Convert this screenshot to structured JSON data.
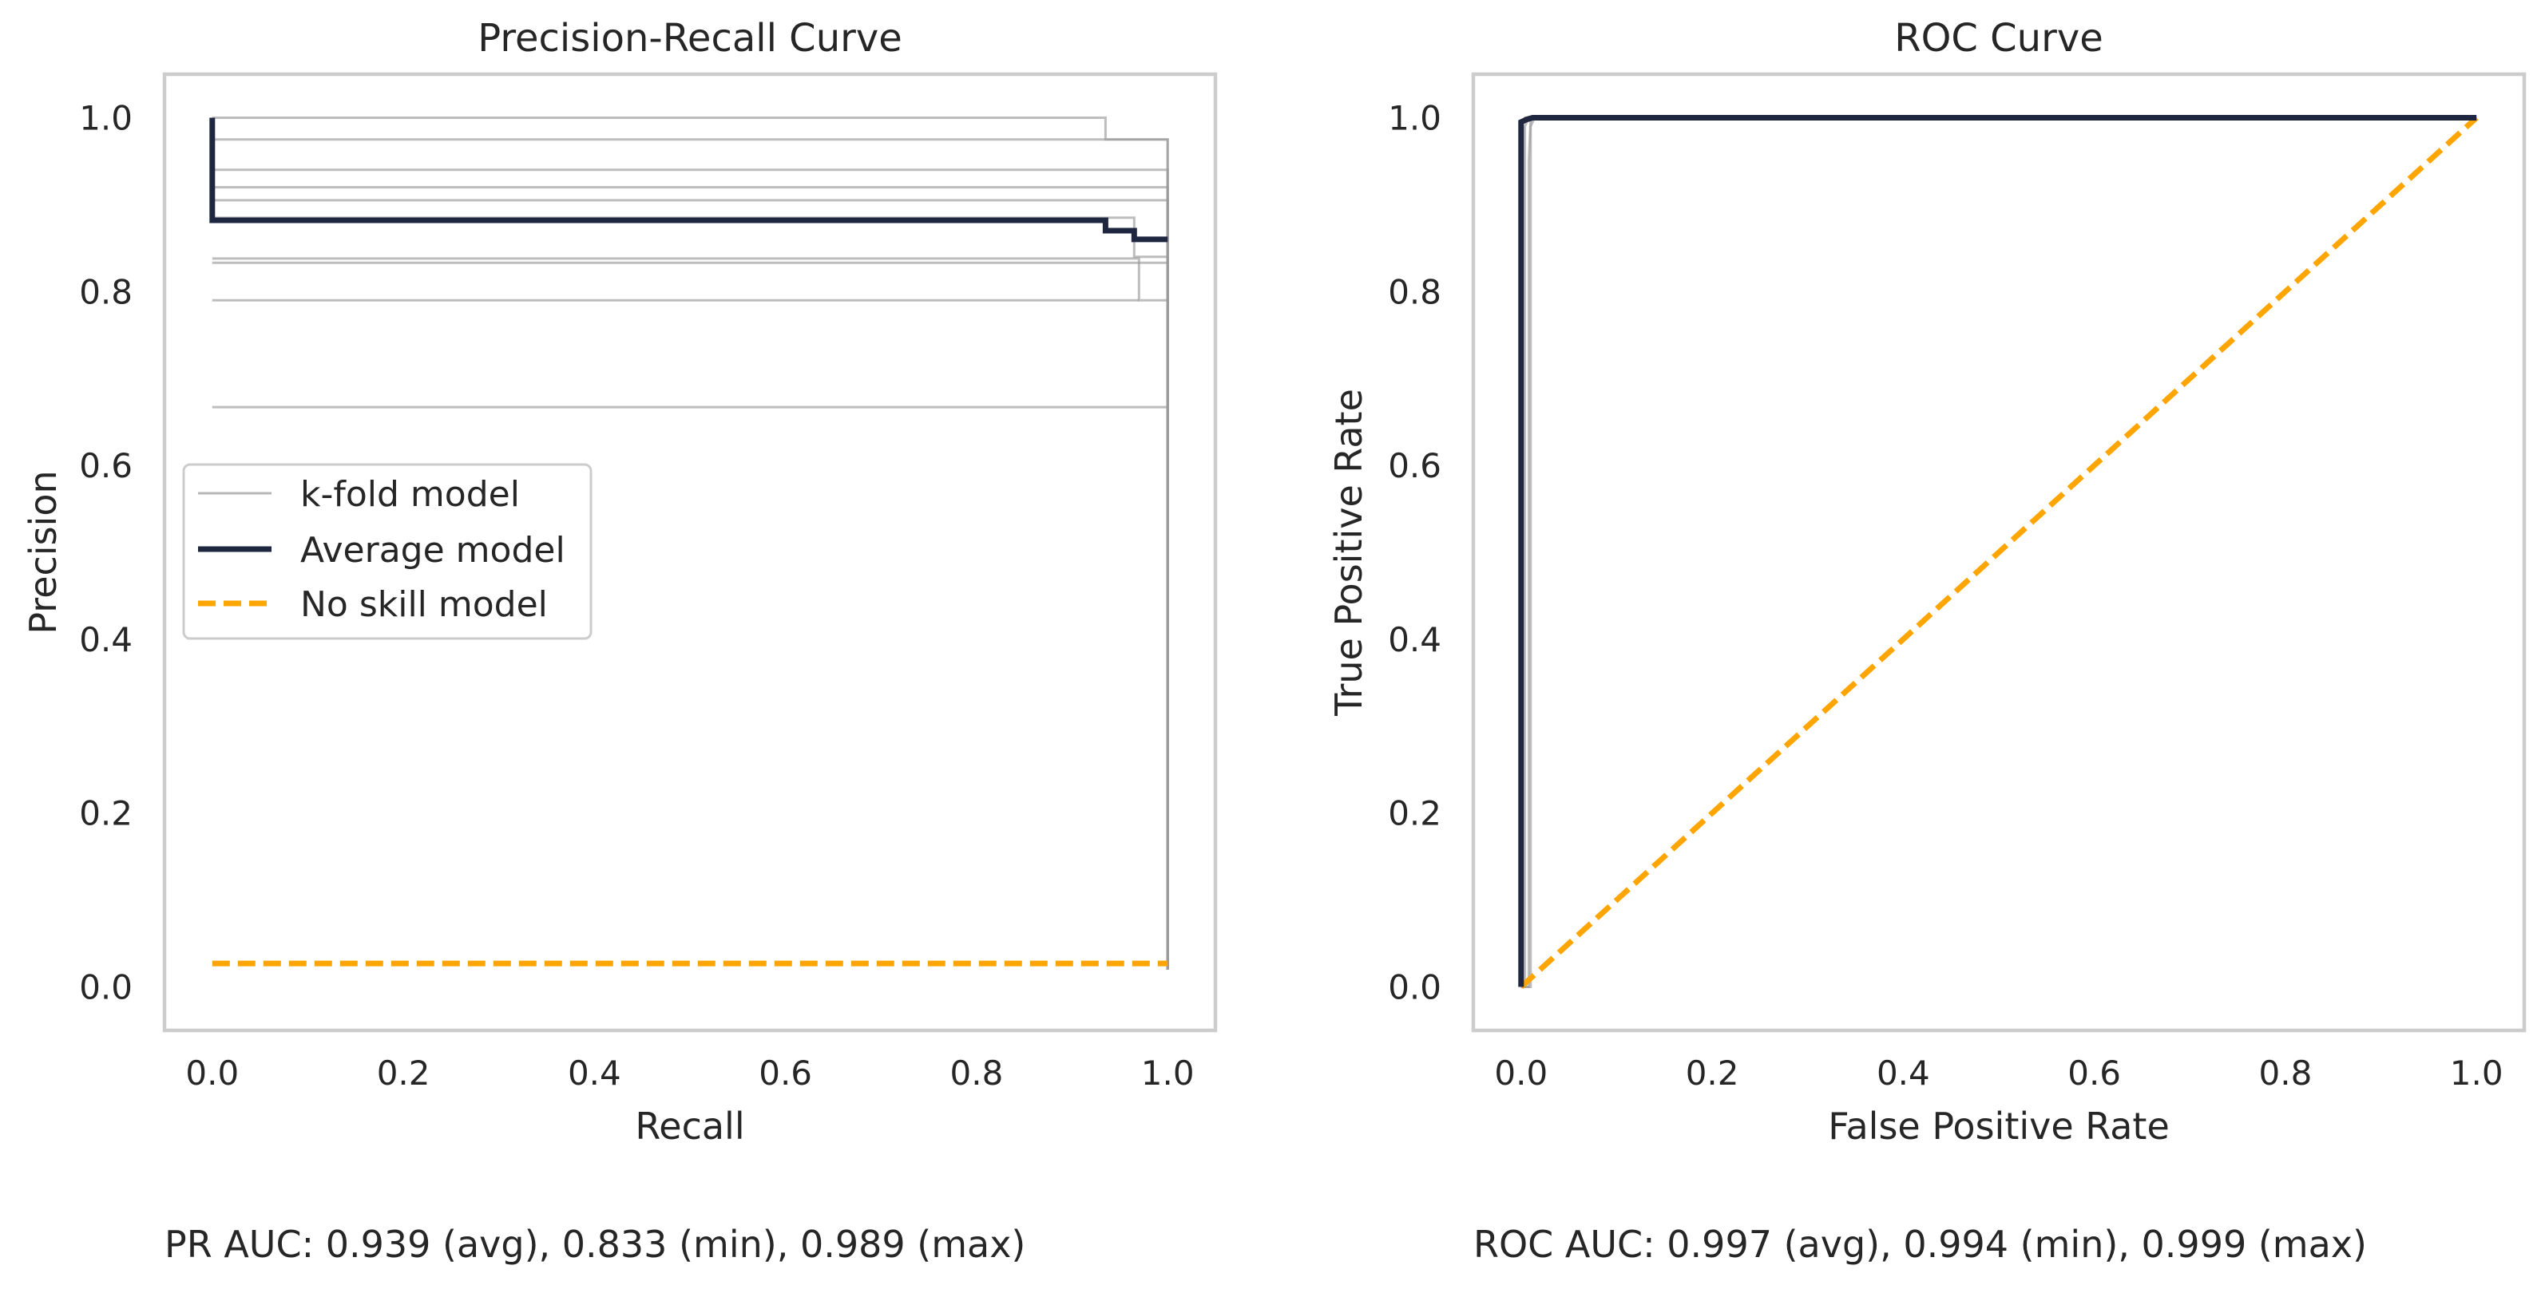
{
  "chart_data": [
    {
      "type": "line",
      "title": "Precision-Recall Curve",
      "xlabel": "Recall",
      "ylabel": "Precision",
      "xlim": [
        -0.05,
        1.05
      ],
      "ylim": [
        -0.05,
        1.05
      ],
      "xticks": [
        "0.0",
        "0.2",
        "0.4",
        "0.6",
        "0.8",
        "1.0"
      ],
      "yticks": [
        "0.0",
        "0.2",
        "0.4",
        "0.6",
        "0.8",
        "1.0"
      ],
      "grid": false,
      "legend": {
        "placement": "center-left",
        "entries": [
          "k-fold model",
          "Average model",
          "No skill model"
        ]
      },
      "colors": {
        "kfold": "#999999",
        "average": "#1f2640",
        "noskill": "#ffa500"
      },
      "series": [
        {
          "name": "k-fold model",
          "points": [
            [
              0,
              1.0
            ],
            [
              0.935,
              1.0
            ],
            [
              0.935,
              0.975
            ],
            [
              1.0,
              0.975
            ],
            [
              1.0,
              0.02
            ]
          ]
        },
        {
          "name": "k-fold model",
          "points": [
            [
              0,
              0.975
            ],
            [
              1.0,
              0.975
            ],
            [
              1.0,
              0.02
            ]
          ]
        },
        {
          "name": "k-fold model",
          "points": [
            [
              0,
              0.94
            ],
            [
              1.0,
              0.94
            ],
            [
              1.0,
              0.02
            ]
          ]
        },
        {
          "name": "k-fold model",
          "points": [
            [
              0,
              0.92
            ],
            [
              1.0,
              0.92
            ],
            [
              1.0,
              0.02
            ]
          ]
        },
        {
          "name": "k-fold model",
          "points": [
            [
              0,
              0.905
            ],
            [
              1.0,
              0.905
            ],
            [
              1.0,
              0.02
            ]
          ]
        },
        {
          "name": "k-fold model",
          "points": [
            [
              0,
              0.885
            ],
            [
              0.965,
              0.885
            ],
            [
              0.965,
              0.84
            ],
            [
              1.0,
              0.84
            ],
            [
              1.0,
              0.02
            ]
          ]
        },
        {
          "name": "k-fold model",
          "points": [
            [
              0,
              0.838
            ],
            [
              0.97,
              0.838
            ],
            [
              0.97,
              0.79
            ],
            [
              1.0,
              0.79
            ],
            [
              1.0,
              0.02
            ]
          ]
        },
        {
          "name": "k-fold model",
          "points": [
            [
              0,
              0.833
            ],
            [
              1.0,
              0.833
            ],
            [
              1.0,
              0.795
            ],
            [
              1.0,
              0.02
            ]
          ]
        },
        {
          "name": "k-fold model",
          "points": [
            [
              0,
              0.79
            ],
            [
              0.97,
              0.79
            ]
          ]
        },
        {
          "name": "k-fold model",
          "points": [
            [
              0,
              0.667
            ],
            [
              1.0,
              0.667
            ],
            [
              1.0,
              0.02
            ]
          ]
        },
        {
          "name": "Average model",
          "points": [
            [
              0,
              1.0
            ],
            [
              0,
              0.882
            ],
            [
              0.935,
              0.882
            ],
            [
              0.935,
              0.87
            ],
            [
              0.965,
              0.87
            ],
            [
              0.965,
              0.86
            ],
            [
              1.0,
              0.86
            ]
          ]
        },
        {
          "name": "No skill model",
          "points": [
            [
              0,
              0.027
            ],
            [
              1.0,
              0.027
            ]
          ]
        }
      ],
      "footer": "PR AUC: 0.939 (avg), 0.833 (min), 0.989 (max)"
    },
    {
      "type": "line",
      "title": "ROC Curve",
      "xlabel": "False Positive Rate",
      "ylabel": "True Positive Rate",
      "xlim": [
        -0.05,
        1.05
      ],
      "ylim": [
        -0.05,
        1.05
      ],
      "xticks": [
        "0.0",
        "0.2",
        "0.4",
        "0.6",
        "0.8",
        "1.0"
      ],
      "yticks": [
        "0.0",
        "0.2",
        "0.4",
        "0.6",
        "0.8",
        "1.0"
      ],
      "grid": false,
      "colors": {
        "kfold": "#999999",
        "average": "#1f2640",
        "noskill": "#ffa500"
      },
      "series": [
        {
          "name": "k-fold model",
          "points": [
            [
              0,
              0
            ],
            [
              0,
              0.99
            ],
            [
              0.004,
              1.0
            ],
            [
              1.0,
              1.0
            ]
          ]
        },
        {
          "name": "k-fold model",
          "points": [
            [
              0,
              0
            ],
            [
              0.004,
              0
            ],
            [
              0.004,
              0.99
            ],
            [
              0.008,
              1.0
            ],
            [
              1.0,
              1.0
            ]
          ]
        },
        {
          "name": "k-fold model",
          "points": [
            [
              0,
              0
            ],
            [
              0.008,
              0
            ],
            [
              0.008,
              0.95
            ],
            [
              0.01,
              1.0
            ],
            [
              1.0,
              1.0
            ]
          ]
        },
        {
          "name": "k-fold model",
          "points": [
            [
              0,
              0
            ],
            [
              0.01,
              0
            ],
            [
              0.01,
              0.99
            ],
            [
              0.014,
              1.0
            ],
            [
              1.0,
              1.0
            ]
          ]
        },
        {
          "name": "Average model",
          "points": [
            [
              0,
              0
            ],
            [
              0,
              0.995
            ],
            [
              0.006,
              0.998
            ],
            [
              0.012,
              1.0
            ],
            [
              1.0,
              1.0
            ]
          ]
        },
        {
          "name": "No skill model",
          "points": [
            [
              0,
              0
            ],
            [
              1.0,
              1.0
            ]
          ]
        }
      ],
      "footer": "ROC AUC: 0.997 (avg), 0.994 (min), 0.999 (max)"
    }
  ]
}
